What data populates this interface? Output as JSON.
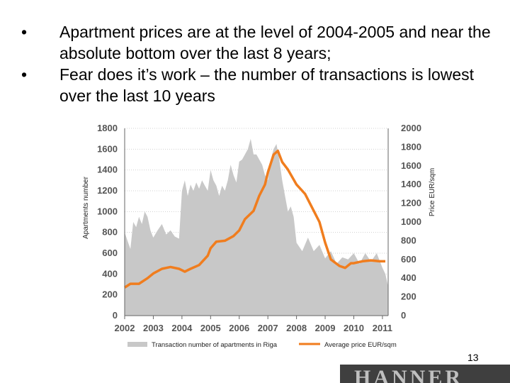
{
  "bullets": [
    {
      "marker": "•",
      "text": "Apartment prices are at the level of 2004-2005 and near the absolute bottom over the last 8 years;"
    },
    {
      "marker": "•",
      "text": "Fear does it’s work – the number of transactions is lowest over the last 10 years"
    }
  ],
  "page_number": "13",
  "logo_text": "HANNER",
  "colors": {
    "area": "#c8c8c8",
    "line": "#f07d1e",
    "grid": "#d0d0d0",
    "axis": "#666666"
  },
  "chart_data": {
    "type": "area",
    "left_axis": {
      "label": "Apartments number",
      "range": [
        0,
        1800
      ],
      "ticks": [
        "0",
        "200",
        "400",
        "600",
        "800",
        "1000",
        "1200",
        "1400",
        "1600",
        "1800"
      ]
    },
    "right_axis": {
      "label": "Price EUR/sqm",
      "range": [
        0,
        2000
      ],
      "ticks": [
        "0",
        "200",
        "400",
        "600",
        "800",
        "1000",
        "1200",
        "1400",
        "1600",
        "1800",
        "2000"
      ]
    },
    "x_axis": {
      "range": [
        2002,
        2011.2
      ],
      "ticks": [
        "2002",
        "2003",
        "2004",
        "2005",
        "2006",
        "2007",
        "2008",
        "2009",
        "2010",
        "2011"
      ]
    },
    "grid": true,
    "legend_position": "bottom",
    "series": [
      {
        "name": "Transaction number of apartments in Riga",
        "kind": "area",
        "axis": "left",
        "x": [
          2002.0,
          2002.1,
          2002.2,
          2002.3,
          2002.4,
          2002.5,
          2002.6,
          2002.7,
          2002.8,
          2002.9,
          2003.0,
          2003.15,
          2003.3,
          2003.45,
          2003.6,
          2003.75,
          2003.9,
          2004.0,
          2004.1,
          2004.2,
          2004.3,
          2004.4,
          2004.5,
          2004.6,
          2004.7,
          2004.8,
          2004.9,
          2005.0,
          2005.1,
          2005.2,
          2005.3,
          2005.4,
          2005.5,
          2005.6,
          2005.7,
          2005.8,
          2005.9,
          2006.0,
          2006.1,
          2006.2,
          2006.3,
          2006.4,
          2006.5,
          2006.6,
          2006.7,
          2006.8,
          2006.9,
          2007.0,
          2007.1,
          2007.2,
          2007.3,
          2007.4,
          2007.5,
          2007.6,
          2007.7,
          2007.8,
          2007.9,
          2008.0,
          2008.2,
          2008.4,
          2008.6,
          2008.8,
          2009.0,
          2009.2,
          2009.4,
          2009.6,
          2009.8,
          2010.0,
          2010.2,
          2010.4,
          2010.6,
          2010.8,
          2011.0,
          2011.1,
          2011.2
        ],
        "values": [
          800,
          720,
          640,
          900,
          850,
          950,
          880,
          1000,
          950,
          820,
          750,
          820,
          880,
          780,
          820,
          760,
          740,
          1200,
          1300,
          1150,
          1260,
          1200,
          1280,
          1220,
          1300,
          1250,
          1200,
          1400,
          1300,
          1250,
          1150,
          1250,
          1200,
          1300,
          1450,
          1350,
          1280,
          1480,
          1500,
          1550,
          1600,
          1700,
          1550,
          1550,
          1500,
          1450,
          1350,
          1300,
          1500,
          1600,
          1650,
          1500,
          1300,
          1150,
          1000,
          1050,
          950,
          700,
          620,
          750,
          620,
          680,
          550,
          620,
          500,
          560,
          540,
          600,
          500,
          600,
          520,
          600,
          460,
          400,
          280
        ]
      },
      {
        "name": "Average price EUR/sqm",
        "kind": "line",
        "axis": "right",
        "x": [
          2002.0,
          2002.2,
          2002.5,
          2002.8,
          2003.0,
          2003.3,
          2003.6,
          2003.9,
          2004.1,
          2004.3,
          2004.6,
          2004.9,
          2005.0,
          2005.2,
          2005.5,
          2005.8,
          2006.0,
          2006.2,
          2006.5,
          2006.7,
          2006.9,
          2007.0,
          2007.2,
          2007.35,
          2007.5,
          2007.7,
          2008.0,
          2008.3,
          2008.6,
          2008.8,
          2009.0,
          2009.2,
          2009.5,
          2009.7,
          2009.9,
          2010.0,
          2010.3,
          2010.6,
          2010.9,
          2011.1
        ],
        "values": [
          300,
          340,
          340,
          400,
          450,
          500,
          520,
          500,
          470,
          500,
          540,
          640,
          720,
          790,
          800,
          850,
          910,
          1030,
          1120,
          1280,
          1400,
          1530,
          1720,
          1760,
          1640,
          1560,
          1400,
          1300,
          1120,
          1000,
          780,
          600,
          530,
          510,
          560,
          560,
          580,
          590,
          580,
          580
        ]
      }
    ]
  }
}
